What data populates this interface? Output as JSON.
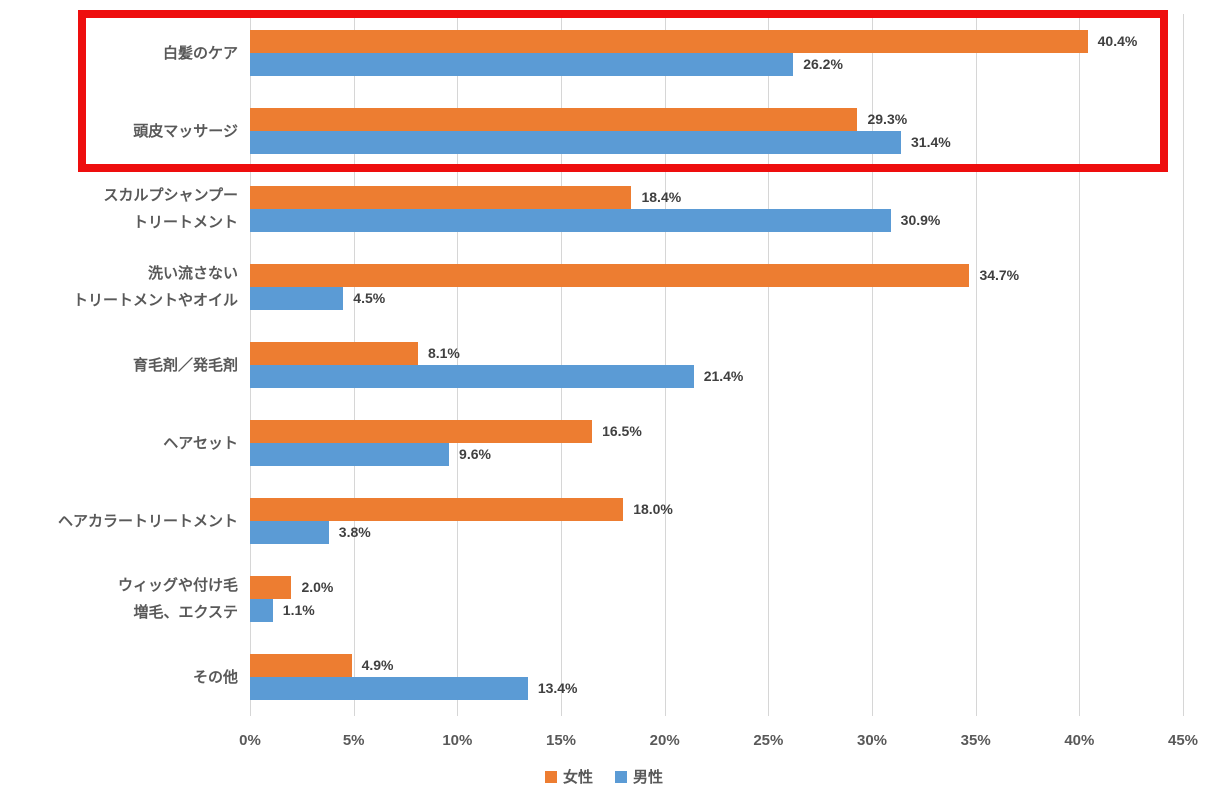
{
  "chart_data": {
    "type": "bar",
    "orientation": "horizontal",
    "title": "",
    "xlabel": "",
    "ylabel": "",
    "xlim": [
      0,
      45
    ],
    "grid": "vertical",
    "x_ticks": [
      "0%",
      "5%",
      "10%",
      "15%",
      "20%",
      "25%",
      "30%",
      "35%",
      "40%",
      "45%"
    ],
    "x_tick_values": [
      0,
      5,
      10,
      15,
      20,
      25,
      30,
      35,
      40,
      45
    ],
    "categories": [
      [
        "白髪のケア"
      ],
      [
        "頭皮マッサージ"
      ],
      [
        "スカルプシャンプー",
        "トリートメント"
      ],
      [
        "洗い流さない",
        "トリートメントやオイル"
      ],
      [
        "育毛剤／発毛剤"
      ],
      [
        "ヘアセット"
      ],
      [
        "ヘアカラートリートメント"
      ],
      [
        "ウィッグや付け毛",
        "増毛、エクステ"
      ],
      [
        "その他"
      ]
    ],
    "series": [
      {
        "name": "女性",
        "color": "#ED7D31",
        "values": [
          40.4,
          29.3,
          18.4,
          34.7,
          8.1,
          16.5,
          18.0,
          2.0,
          4.9
        ]
      },
      {
        "name": "男性",
        "color": "#5B9BD5",
        "values": [
          26.2,
          31.4,
          30.9,
          4.5,
          21.4,
          9.6,
          3.8,
          1.1,
          13.4
        ]
      }
    ],
    "value_label_format": "0.0%",
    "legend_position": "bottom-center",
    "highlight": {
      "color": "#ee0e0e",
      "categories": [
        "白髪のケア",
        "頭皮マッサージ"
      ]
    }
  },
  "legend": {
    "items": [
      {
        "label": "女性",
        "color": "#ED7D31"
      },
      {
        "label": "男性",
        "color": "#5B9BD5"
      }
    ]
  }
}
